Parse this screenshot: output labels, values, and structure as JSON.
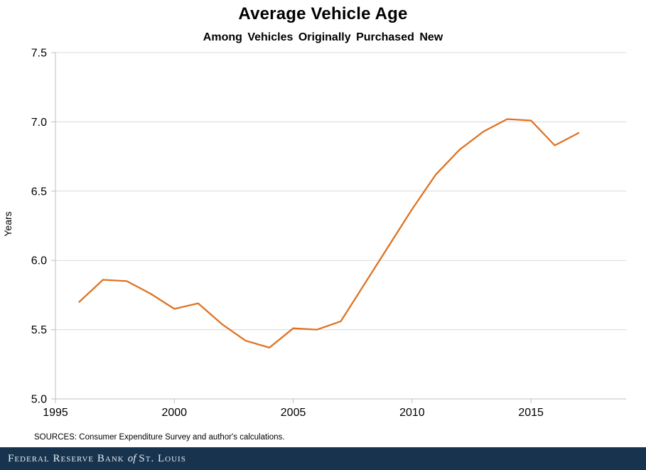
{
  "header": {
    "title": "Average Vehicle Age",
    "subtitle": "Among Vehicles Originally Purchased New"
  },
  "chart_data": {
    "type": "line",
    "title": "Average Vehicle Age",
    "subtitle": "Among Vehicles Originally Purchased New",
    "xlabel": "",
    "ylabel": "Years",
    "x": [
      1996,
      1997,
      1998,
      1999,
      2000,
      2001,
      2002,
      2003,
      2004,
      2005,
      2006,
      2007,
      2008,
      2009,
      2010,
      2011,
      2012,
      2013,
      2014,
      2015,
      2016,
      2017
    ],
    "values": [
      5.7,
      5.86,
      5.85,
      5.76,
      5.65,
      5.69,
      5.54,
      5.42,
      5.37,
      5.51,
      5.5,
      5.56,
      5.83,
      6.1,
      6.37,
      6.62,
      6.8,
      6.93,
      7.02,
      7.01,
      6.83,
      6.92
    ],
    "series_name": "Average vehicle age (years)",
    "xlim": [
      1995,
      2019
    ],
    "ylim": [
      5.0,
      7.5
    ],
    "x_ticks": [
      1995,
      2000,
      2005,
      2010,
      2015
    ],
    "y_ticks": [
      5.0,
      5.5,
      6.0,
      6.5,
      7.0,
      7.5
    ],
    "grid": "horizontal",
    "legend": "none",
    "line_color": "#DE7323",
    "grid_color": "#D9D9D9",
    "axis_color": "#BFBFBF",
    "tick_label_color": "#000000"
  },
  "source_note": "SOURCES: Consumer Expenditure Survey and author's calculations.",
  "footer": {
    "bank_main": "Federal Reserve Bank",
    "bank_of": "of",
    "bank_city": "St. Louis",
    "bar_color": "#17334E",
    "text_color": "#E8EDF2"
  }
}
